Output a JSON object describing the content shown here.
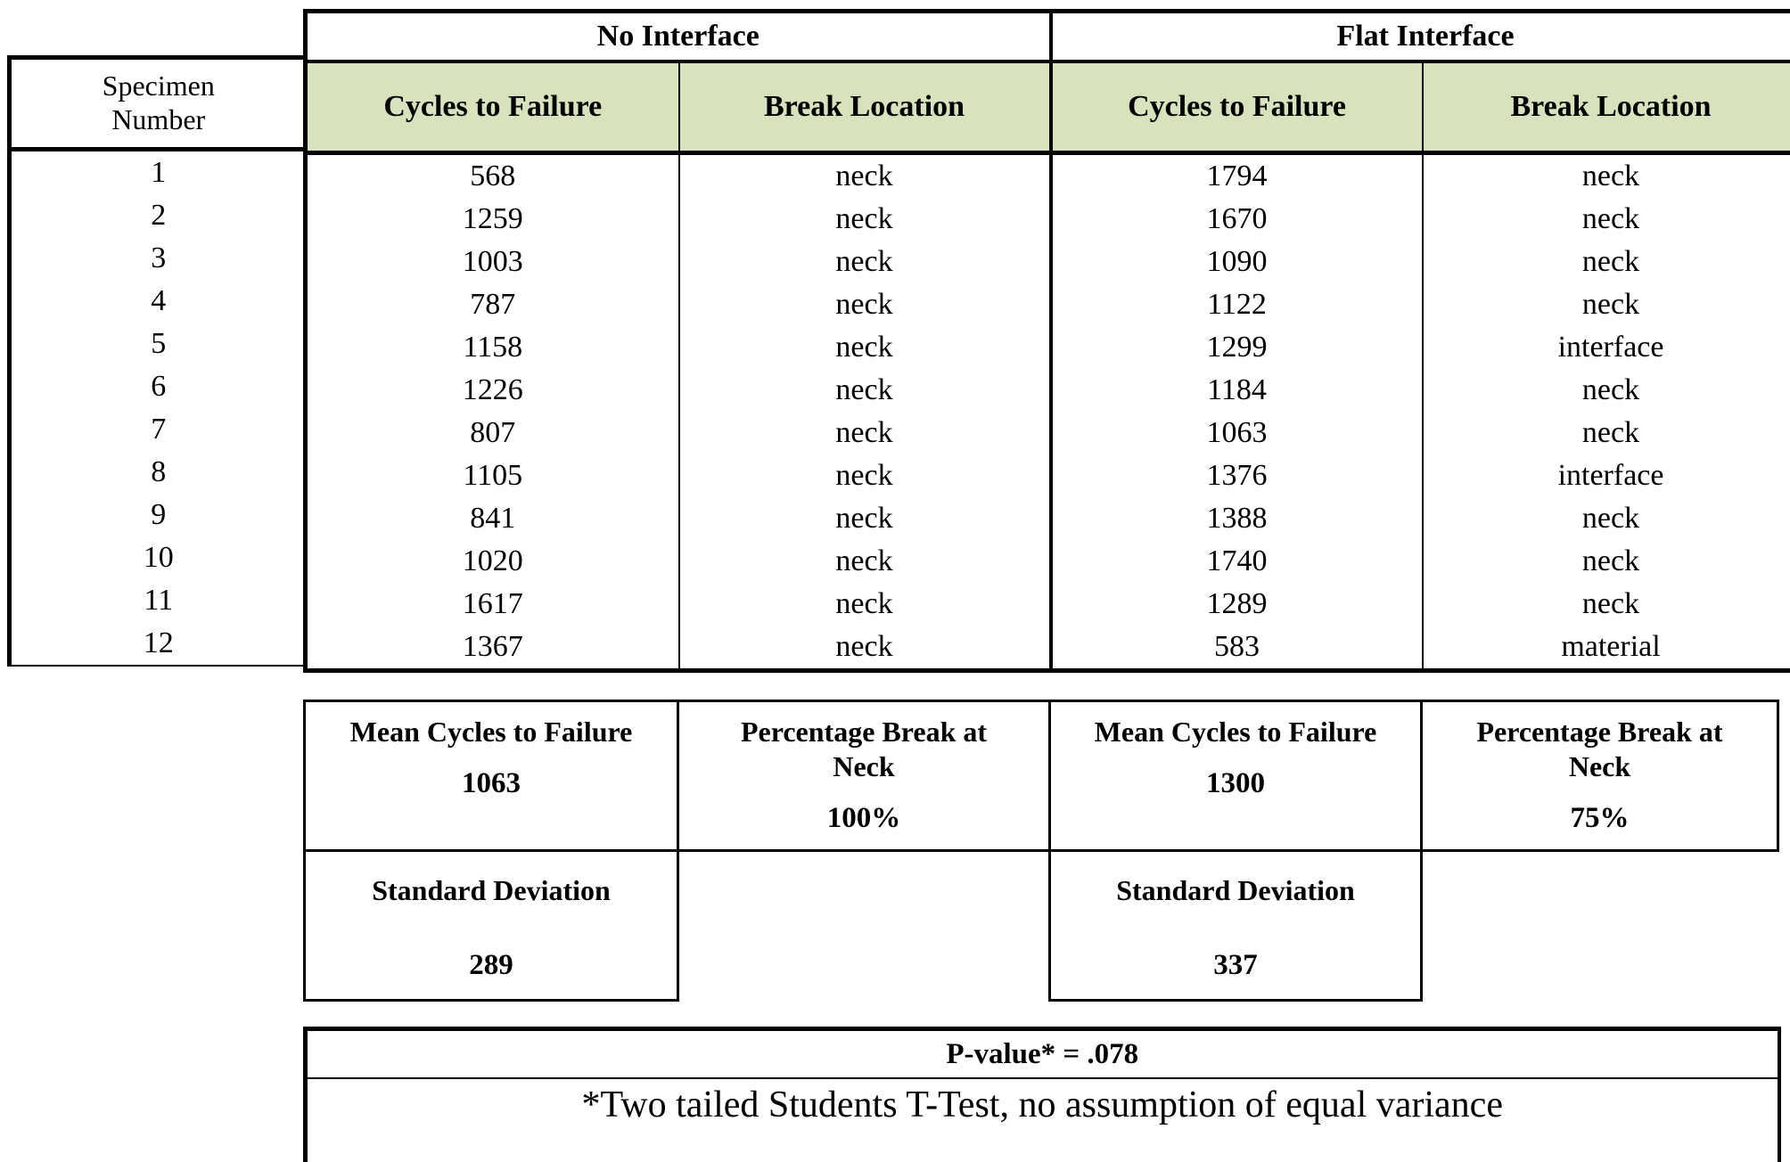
{
  "colors": {
    "header_fill": "#d7e3bd",
    "border": "#000000",
    "background": "#ffffff"
  },
  "table": {
    "group_headers": [
      "No Interface",
      "Flat Interface"
    ],
    "row_header": "Specimen Number",
    "col_headers": [
      "Cycles to Failure",
      "Break Location",
      "Cycles to Failure",
      "Break Location"
    ],
    "rows": [
      {
        "specimen": "1",
        "no_cycles": "568",
        "no_break": "neck",
        "flat_cycles": "1794",
        "flat_break": "neck"
      },
      {
        "specimen": "2",
        "no_cycles": "1259",
        "no_break": "neck",
        "flat_cycles": "1670",
        "flat_break": "neck"
      },
      {
        "specimen": "3",
        "no_cycles": "1003",
        "no_break": "neck",
        "flat_cycles": "1090",
        "flat_break": "neck"
      },
      {
        "specimen": "4",
        "no_cycles": "787",
        "no_break": "neck",
        "flat_cycles": "1122",
        "flat_break": "neck"
      },
      {
        "specimen": "5",
        "no_cycles": "1158",
        "no_break": "neck",
        "flat_cycles": "1299",
        "flat_break": "interface"
      },
      {
        "specimen": "6",
        "no_cycles": "1226",
        "no_break": "neck",
        "flat_cycles": "1184",
        "flat_break": "neck"
      },
      {
        "specimen": "7",
        "no_cycles": "807",
        "no_break": "neck",
        "flat_cycles": "1063",
        "flat_break": "neck"
      },
      {
        "specimen": "8",
        "no_cycles": "1105",
        "no_break": "neck",
        "flat_cycles": "1376",
        "flat_break": "interface"
      },
      {
        "specimen": "9",
        "no_cycles": "841",
        "no_break": "neck",
        "flat_cycles": "1388",
        "flat_break": "neck"
      },
      {
        "specimen": "10",
        "no_cycles": "1020",
        "no_break": "neck",
        "flat_cycles": "1740",
        "flat_break": "neck"
      },
      {
        "specimen": "11",
        "no_cycles": "1617",
        "no_break": "neck",
        "flat_cycles": "1289",
        "flat_break": "neck"
      },
      {
        "specimen": "12",
        "no_cycles": "1367",
        "no_break": "neck",
        "flat_cycles": "583",
        "flat_break": "material"
      }
    ]
  },
  "summary": {
    "no_interface": {
      "mean_label": "Mean Cycles to Failure",
      "mean_value": "1063",
      "pct_label": "Percentage Break at Neck",
      "pct_value": "100%",
      "std_label": "Standard Deviation",
      "std_value": "289"
    },
    "flat_interface": {
      "mean_label": "Mean Cycles to Failure",
      "mean_value": "1300",
      "pct_label": "Percentage Break at Neck",
      "pct_value": "75%",
      "std_label": "Standard Deviation",
      "std_value": "337"
    }
  },
  "significance": {
    "p_value": "P-value* = .078",
    "footnote": "*Two tailed Students T-Test, no assumption of equal variance"
  }
}
